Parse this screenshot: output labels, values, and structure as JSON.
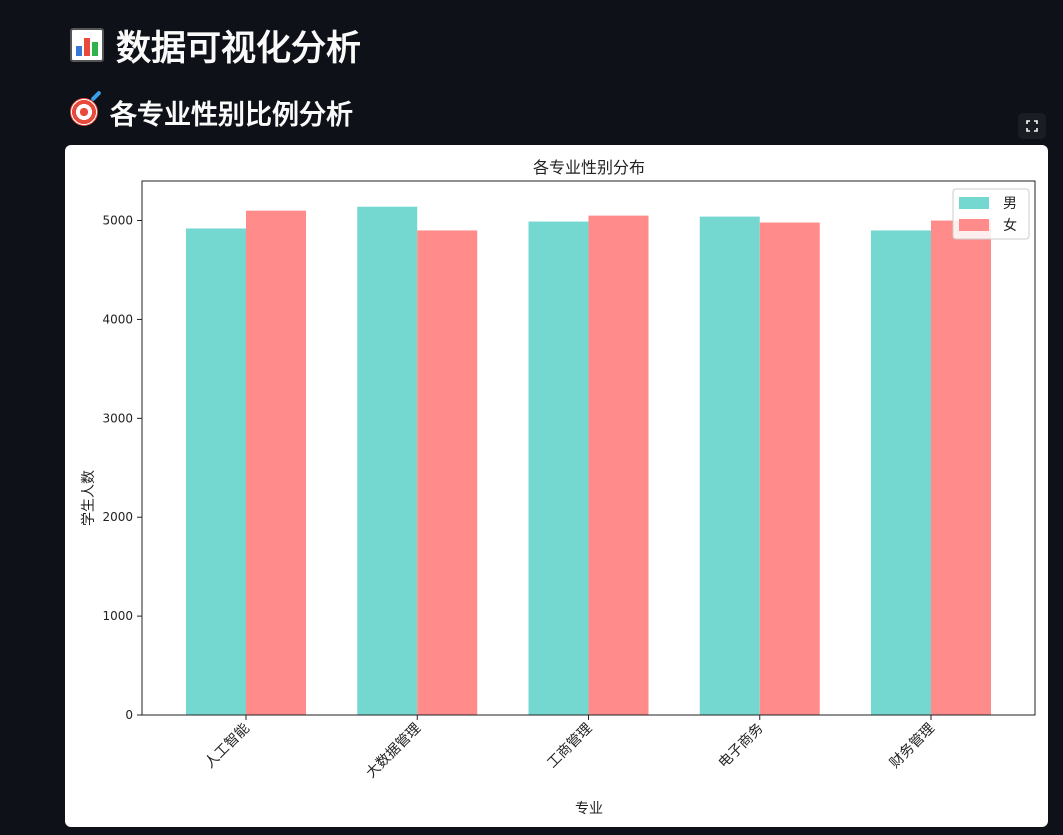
{
  "page": {
    "title": "数据可视化分析",
    "title_icon": "bar-chart-emoji-icon",
    "section_title": "各专业性别比例分析",
    "section_icon": "target-dart-emoji-icon",
    "fullscreen_icon": "fullscreen-expand-icon"
  },
  "chart_data": {
    "type": "bar",
    "title": "各专业性别分布",
    "xlabel": "专业",
    "ylabel": "学生人数",
    "categories": [
      "人工智能",
      "大数据管理",
      "工商管理",
      "电子商务",
      "财务管理"
    ],
    "series": [
      {
        "name": "男",
        "color": "#74d8d0",
        "values": [
          4920,
          5140,
          4990,
          5040,
          4900
        ]
      },
      {
        "name": "女",
        "color": "#ff8b8b",
        "values": [
          5100,
          4900,
          5050,
          4980,
          5000
        ]
      }
    ],
    "ylim": [
      0,
      5400
    ],
    "yticks": [
      0,
      1000,
      2000,
      3000,
      4000,
      5000
    ],
    "grid": false,
    "legend_position": "top-right"
  }
}
